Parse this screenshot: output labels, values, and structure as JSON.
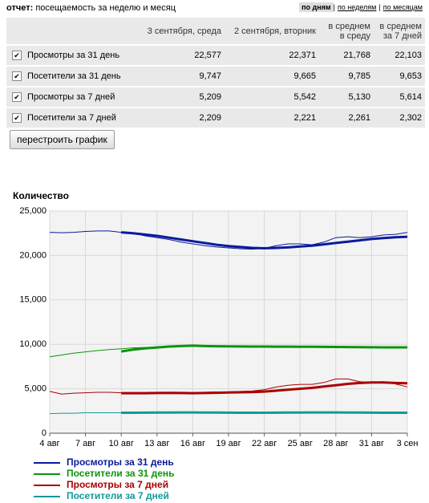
{
  "header": {
    "label": "отчет:",
    "title": "посещаемость за неделю и месяц",
    "links": [
      "по дням",
      "по неделям",
      "по месяцам"
    ]
  },
  "table": {
    "columns": [
      "3 сентября, среда",
      "2 сентября, вторник",
      "в среднем в среду",
      "в среднем за 7 дней"
    ],
    "rows": [
      [
        "Просмотры за 31 день",
        "22,577",
        "22,371",
        "21,768",
        "22,103"
      ],
      [
        "Посетители за 31 день",
        "9,747",
        "9,665",
        "9,785",
        "9,653"
      ],
      [
        "Просмотры за 7 дней",
        "5,209",
        "5,542",
        "5,130",
        "5,614"
      ],
      [
        "Посетители за 7 дней",
        "2,209",
        "2,221",
        "2,261",
        "2,302"
      ]
    ]
  },
  "button": "перестроить график",
  "chart_data": {
    "type": "line",
    "y_label": "Количество",
    "categories": [
      "4 авг",
      null,
      null,
      "7 авг",
      null,
      null,
      "10 авг",
      null,
      null,
      "13 авг",
      null,
      null,
      "16 авг",
      null,
      null,
      "19 авг",
      null,
      null,
      "22 авг",
      null,
      null,
      "25 авг",
      null,
      null,
      "28 авг",
      null,
      null,
      "31 авг",
      null,
      null,
      "3 сен"
    ],
    "ylim": [
      0,
      25000
    ],
    "yticks": [
      0,
      {
        "value": 5000,
        "label": "5,000"
      },
      {
        "value": 10000,
        "label": "10,000"
      },
      {
        "value": 15000,
        "label": "15,000"
      },
      {
        "value": 20000,
        "label": "20,000"
      },
      {
        "value": 25000,
        "label": "25,000"
      }
    ],
    "grid": true,
    "series": [
      {
        "name": "Просмотры за 31 день",
        "color": "#0a1a9c",
        "values": [
          22600,
          22550,
          22600,
          22700,
          22750,
          22750,
          22600,
          22500,
          22200,
          22000,
          21800,
          21500,
          21300,
          21100,
          20950,
          20850,
          20750,
          20700,
          20800,
          21100,
          21300,
          21300,
          21200,
          21500,
          22000,
          22100,
          22000,
          22100,
          22300,
          22371,
          22577
        ],
        "trend": [
          null,
          null,
          null,
          null,
          null,
          null,
          22600,
          22500,
          22350,
          22200,
          22000,
          21800,
          21600,
          21400,
          21200,
          21050,
          20950,
          20850,
          20800,
          20850,
          20900,
          21000,
          21100,
          21250,
          21400,
          21550,
          21700,
          21850,
          21950,
          22050,
          22103
        ]
      },
      {
        "name": "Посетители за 31 день",
        "color": "#0c940c",
        "values": [
          8600,
          8800,
          9000,
          9150,
          9300,
          9400,
          9500,
          9600,
          9650,
          9700,
          9750,
          9800,
          9850,
          9850,
          9800,
          9780,
          9770,
          9760,
          9750,
          9750,
          9750,
          9750,
          9750,
          9750,
          9750,
          9750,
          9750,
          9750,
          9740,
          9665,
          9747
        ],
        "trend": [
          null,
          null,
          null,
          null,
          null,
          null,
          9200,
          9400,
          9550,
          9650,
          9750,
          9800,
          9850,
          9800,
          9780,
          9770,
          9760,
          9750,
          9750,
          9740,
          9740,
          9730,
          9720,
          9710,
          9700,
          9690,
          9680,
          9670,
          9660,
          9655,
          9653
        ]
      },
      {
        "name": "Просмотры за 7 дней",
        "color": "#aa0000",
        "values": [
          4700,
          4400,
          4500,
          4550,
          4600,
          4600,
          4550,
          4500,
          4500,
          4550,
          4600,
          4550,
          4500,
          4600,
          4650,
          4650,
          4700,
          4750,
          4900,
          5200,
          5400,
          5500,
          5500,
          5700,
          6100,
          6100,
          5800,
          5700,
          5800,
          5542,
          5209
        ],
        "trend": [
          null,
          null,
          null,
          null,
          null,
          null,
          4500,
          4500,
          4500,
          4520,
          4540,
          4520,
          4500,
          4520,
          4550,
          4580,
          4600,
          4620,
          4680,
          4780,
          4900,
          5000,
          5100,
          5250,
          5400,
          5550,
          5650,
          5700,
          5700,
          5650,
          5614
        ]
      },
      {
        "name": "Посетители за 7 дней",
        "color": "#119999",
        "values": [
          2200,
          2250,
          2250,
          2300,
          2300,
          2300,
          2300,
          2300,
          2320,
          2350,
          2350,
          2350,
          2350,
          2330,
          2300,
          2300,
          2300,
          2300,
          2310,
          2330,
          2350,
          2350,
          2350,
          2350,
          2350,
          2350,
          2350,
          2350,
          2340,
          2221,
          2209
        ],
        "trend": [
          null,
          null,
          null,
          null,
          null,
          null,
          2300,
          2300,
          2310,
          2320,
          2330,
          2340,
          2340,
          2330,
          2320,
          2310,
          2300,
          2300,
          2300,
          2310,
          2320,
          2330,
          2340,
          2340,
          2340,
          2330,
          2320,
          2310,
          2300,
          2300,
          2302
        ]
      }
    ]
  }
}
